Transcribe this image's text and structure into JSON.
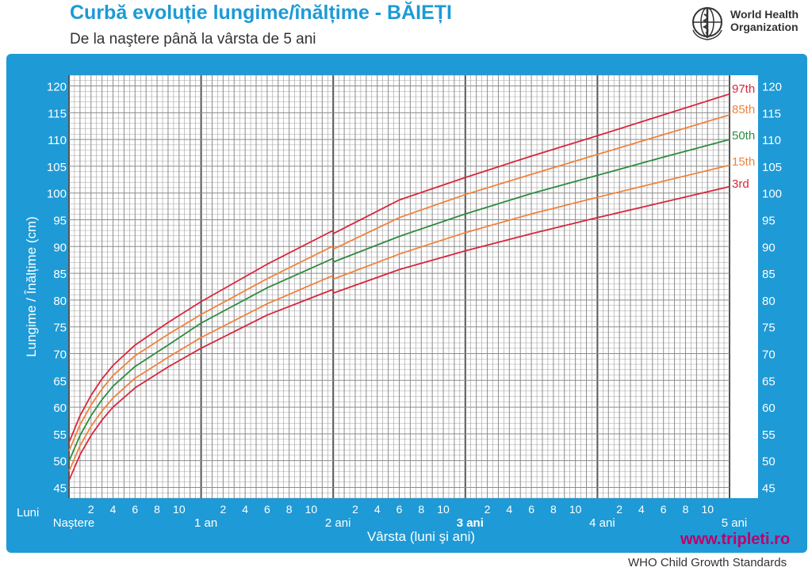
{
  "header": {
    "title": "Curbă evoluție lungime/înălțime - BĂIEȚI",
    "subtitle": "De la naştere până la vârsta de 5 ani"
  },
  "logo": {
    "line1": "World Health",
    "line2": "Organization"
  },
  "footer": {
    "website": "www.tripleti.ro",
    "source": "WHO Child Growth Standards"
  },
  "colors": {
    "frame": "#1e9ad6",
    "grid": "#8c8c8c",
    "p97": "#d9253d",
    "p85": "#f0823c",
    "p50": "#2e8b3f",
    "p15": "#f0823c",
    "p3": "#d9253d"
  },
  "chart_data": {
    "type": "line",
    "title": "Curbă evoluție lungime/înălțime - BĂIEȚI",
    "xlabel": "Vârsta (luni şi ani)",
    "ylabel": "Lungime / Înălțime  (cm)",
    "x_unit_label": "Luni",
    "xlim": [
      0,
      60
    ],
    "ylim": [
      43,
      122
    ],
    "y_ticks": [
      45,
      50,
      55,
      60,
      65,
      70,
      75,
      80,
      85,
      90,
      95,
      100,
      105,
      110,
      115,
      120
    ],
    "month_tick_labels": [
      "2",
      "4",
      "6",
      "8",
      "10"
    ],
    "year_labels": [
      {
        "month": 0,
        "label": "Naştere"
      },
      {
        "month": 12,
        "label": "1 an"
      },
      {
        "month": 24,
        "label": "2 ani"
      },
      {
        "month": 36,
        "label": "3 ani"
      },
      {
        "month": 48,
        "label": "4 ani"
      },
      {
        "month": 60,
        "label": "5 ani"
      }
    ],
    "grid": true,
    "x": [
      0,
      1,
      2,
      3,
      4,
      6,
      9,
      12,
      18,
      24,
      30,
      36,
      42,
      48,
      54,
      60
    ],
    "segment_break_month": 24,
    "series": [
      {
        "name": "97th",
        "color_key": "p97",
        "values": [
          53.4,
          58.4,
          62.2,
          65.3,
          67.8,
          71.6,
          75.8,
          79.7,
          86.7,
          93.0,
          98.7,
          102.9,
          106.9,
          110.7,
          114.6,
          118.5
        ],
        "value_after_break": 92.4
      },
      {
        "name": "85th",
        "color_key": "p85",
        "values": [
          51.8,
          56.7,
          60.4,
          63.4,
          65.9,
          69.6,
          73.6,
          77.3,
          84.0,
          90.1,
          95.4,
          99.7,
          103.5,
          107.2,
          110.9,
          114.6
        ],
        "value_after_break": 89.5
      },
      {
        "name": "50th",
        "color_key": "p50",
        "values": [
          49.9,
          54.7,
          58.4,
          61.4,
          63.9,
          67.6,
          71.6,
          75.7,
          82.3,
          87.8,
          91.9,
          96.1,
          99.9,
          103.3,
          106.7,
          110.0
        ],
        "value_after_break": 87.1
      },
      {
        "name": "15th",
        "color_key": "p15",
        "values": [
          48.0,
          52.8,
          56.4,
          59.3,
          61.7,
          65.4,
          69.3,
          73.0,
          79.3,
          84.6,
          88.6,
          92.6,
          96.1,
          99.2,
          102.2,
          105.2
        ],
        "value_after_break": 83.9
      },
      {
        "name": "3rd",
        "color_key": "p3",
        "values": [
          46.3,
          51.1,
          54.7,
          57.6,
          60.0,
          63.6,
          67.5,
          71.0,
          77.2,
          82.0,
          85.7,
          89.2,
          92.4,
          95.4,
          98.3,
          101.2
        ],
        "value_after_break": 81.3
      }
    ]
  }
}
